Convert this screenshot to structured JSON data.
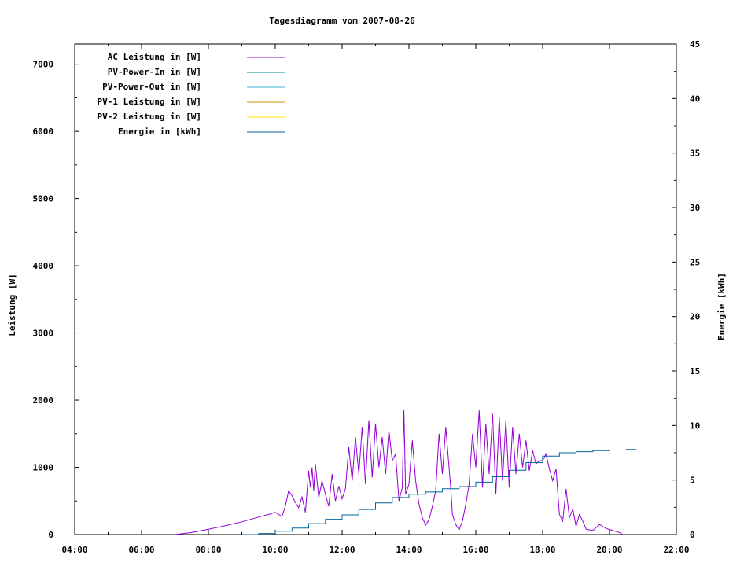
{
  "chart_data": {
    "type": "line",
    "title": "Tagesdiagramm vom 2007-08-26",
    "xlabel": "",
    "ylabel": "Leistung [W]",
    "y2label": "Energie [kWh]",
    "x_ticks": [
      "04:00",
      "06:00",
      "08:00",
      "10:00",
      "12:00",
      "14:00",
      "16:00",
      "18:00",
      "20:00",
      "22:00"
    ],
    "x_range_hours": [
      4,
      22
    ],
    "ylim": [
      0,
      7300
    ],
    "y_ticks": [
      0,
      1000,
      2000,
      3000,
      4000,
      5000,
      6000,
      7000
    ],
    "y2lim": [
      0,
      45
    ],
    "y2_ticks": [
      0,
      5,
      10,
      15,
      20,
      25,
      30,
      35,
      40,
      45
    ],
    "legend_position": "top-left",
    "series": [
      {
        "name": "AC Leistung in [W]",
        "axis": "left",
        "color": "#9400d3",
        "points": [
          [
            7.0,
            0
          ],
          [
            7.5,
            30
          ],
          [
            8.0,
            80
          ],
          [
            8.5,
            130
          ],
          [
            9.0,
            190
          ],
          [
            9.5,
            260
          ],
          [
            9.8,
            300
          ],
          [
            10.0,
            330
          ],
          [
            10.2,
            270
          ],
          [
            10.3,
            420
          ],
          [
            10.4,
            650
          ],
          [
            10.5,
            580
          ],
          [
            10.6,
            480
          ],
          [
            10.7,
            400
          ],
          [
            10.8,
            560
          ],
          [
            10.9,
            330
          ],
          [
            11.0,
            950
          ],
          [
            11.05,
            700
          ],
          [
            11.1,
            1000
          ],
          [
            11.15,
            650
          ],
          [
            11.2,
            1050
          ],
          [
            11.3,
            550
          ],
          [
            11.4,
            800
          ],
          [
            11.5,
            600
          ],
          [
            11.6,
            420
          ],
          [
            11.7,
            900
          ],
          [
            11.8,
            500
          ],
          [
            11.9,
            720
          ],
          [
            12.0,
            530
          ],
          [
            12.1,
            680
          ],
          [
            12.2,
            1300
          ],
          [
            12.3,
            800
          ],
          [
            12.4,
            1450
          ],
          [
            12.5,
            900
          ],
          [
            12.6,
            1600
          ],
          [
            12.7,
            750
          ],
          [
            12.8,
            1700
          ],
          [
            12.9,
            850
          ],
          [
            13.0,
            1650
          ],
          [
            13.1,
            1000
          ],
          [
            13.2,
            1450
          ],
          [
            13.3,
            900
          ],
          [
            13.4,
            1550
          ],
          [
            13.5,
            1100
          ],
          [
            13.6,
            1200
          ],
          [
            13.7,
            500
          ],
          [
            13.8,
            700
          ],
          [
            13.85,
            1850
          ],
          [
            13.9,
            600
          ],
          [
            14.0,
            750
          ],
          [
            14.1,
            1400
          ],
          [
            14.2,
            800
          ],
          [
            14.3,
            450
          ],
          [
            14.4,
            250
          ],
          [
            14.5,
            140
          ],
          [
            14.6,
            220
          ],
          [
            14.7,
            420
          ],
          [
            14.8,
            650
          ],
          [
            14.9,
            1500
          ],
          [
            15.0,
            900
          ],
          [
            15.1,
            1600
          ],
          [
            15.2,
            1000
          ],
          [
            15.25,
            700
          ],
          [
            15.3,
            300
          ],
          [
            15.4,
            150
          ],
          [
            15.5,
            70
          ],
          [
            15.6,
            200
          ],
          [
            15.7,
            450
          ],
          [
            15.8,
            750
          ],
          [
            15.9,
            1500
          ],
          [
            16.0,
            1000
          ],
          [
            16.1,
            1850
          ],
          [
            16.2,
            700
          ],
          [
            16.3,
            1650
          ],
          [
            16.4,
            900
          ],
          [
            16.5,
            1800
          ],
          [
            16.6,
            600
          ],
          [
            16.7,
            1750
          ],
          [
            16.8,
            800
          ],
          [
            16.9,
            1700
          ],
          [
            17.0,
            700
          ],
          [
            17.1,
            1600
          ],
          [
            17.2,
            900
          ],
          [
            17.3,
            1500
          ],
          [
            17.4,
            1000
          ],
          [
            17.5,
            1400
          ],
          [
            17.6,
            950
          ],
          [
            17.7,
            1250
          ],
          [
            17.8,
            1050
          ],
          [
            17.9,
            1100
          ],
          [
            18.0,
            1100
          ],
          [
            18.1,
            1200
          ],
          [
            18.2,
            980
          ],
          [
            18.3,
            800
          ],
          [
            18.4,
            980
          ],
          [
            18.5,
            300
          ],
          [
            18.6,
            200
          ],
          [
            18.7,
            680
          ],
          [
            18.8,
            250
          ],
          [
            18.9,
            380
          ],
          [
            19.0,
            120
          ],
          [
            19.1,
            300
          ],
          [
            19.2,
            200
          ],
          [
            19.3,
            80
          ],
          [
            19.5,
            60
          ],
          [
            19.7,
            150
          ],
          [
            19.9,
            90
          ],
          [
            20.1,
            60
          ],
          [
            20.3,
            30
          ],
          [
            20.4,
            0
          ]
        ]
      },
      {
        "name": "PV-Power-In in [W]",
        "axis": "left",
        "color": "#008b8b",
        "points": []
      },
      {
        "name": "PV-Power-Out in [W]",
        "axis": "left",
        "color": "#3cb4d8",
        "points": []
      },
      {
        "name": "PV-1 Leistung in [W]",
        "axis": "left",
        "color": "#c89600",
        "points": []
      },
      {
        "name": "PV-2 Leistung in [W]",
        "axis": "left",
        "color": "#ffe600",
        "points": []
      },
      {
        "name": "Energie in [kWh]",
        "axis": "right",
        "color": "#0066a0",
        "points": [
          [
            9.0,
            0
          ],
          [
            9.5,
            0.1
          ],
          [
            10.0,
            0.3
          ],
          [
            10.5,
            0.6
          ],
          [
            11.0,
            1.0
          ],
          [
            11.5,
            1.4
          ],
          [
            12.0,
            1.8
          ],
          [
            12.5,
            2.3
          ],
          [
            13.0,
            2.9
          ],
          [
            13.5,
            3.4
          ],
          [
            14.0,
            3.7
          ],
          [
            14.5,
            3.9
          ],
          [
            15.0,
            4.2
          ],
          [
            15.5,
            4.4
          ],
          [
            16.0,
            4.8
          ],
          [
            16.5,
            5.3
          ],
          [
            17.0,
            5.9
          ],
          [
            17.5,
            6.6
          ],
          [
            18.0,
            7.2
          ],
          [
            18.5,
            7.5
          ],
          [
            19.0,
            7.6
          ],
          [
            19.5,
            7.7
          ],
          [
            20.0,
            7.75
          ],
          [
            20.5,
            7.8
          ],
          [
            20.8,
            7.8
          ]
        ]
      }
    ]
  }
}
